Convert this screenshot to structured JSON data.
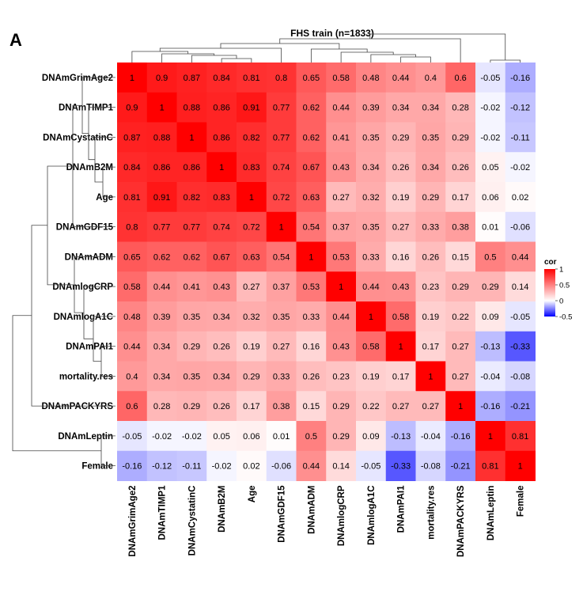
{
  "panel_label": "A",
  "chart_data": {
    "type": "heatmap",
    "title": "FHS train (n=1833)",
    "variables": [
      "DNAmGrimAge2",
      "DNAmTIMP1",
      "DNAmCystatinC",
      "DNAmB2M",
      "Age",
      "DNAmGDF15",
      "DNAmADM",
      "DNAmlogCRP",
      "DNAmlogA1C",
      "DNAmPAI1",
      "mortality.res",
      "DNAmPACKYRS",
      "DNAmLeptin",
      "Female"
    ],
    "values": [
      [
        1,
        0.9,
        0.87,
        0.84,
        0.81,
        0.8,
        0.65,
        0.58,
        0.48,
        0.44,
        0.4,
        0.6,
        -0.05,
        -0.16
      ],
      [
        0.9,
        1,
        0.88,
        0.86,
        0.91,
        0.77,
        0.62,
        0.44,
        0.39,
        0.34,
        0.34,
        0.28,
        -0.02,
        -0.12
      ],
      [
        0.87,
        0.88,
        1,
        0.86,
        0.82,
        0.77,
        0.62,
        0.41,
        0.35,
        0.29,
        0.35,
        0.29,
        -0.02,
        -0.11
      ],
      [
        0.84,
        0.86,
        0.86,
        1,
        0.83,
        0.74,
        0.67,
        0.43,
        0.34,
        0.26,
        0.34,
        0.26,
        0.05,
        -0.02
      ],
      [
        0.81,
        0.91,
        0.82,
        0.83,
        1,
        0.72,
        0.63,
        0.27,
        0.32,
        0.19,
        0.29,
        0.17,
        0.06,
        0.02
      ],
      [
        0.8,
        0.77,
        0.77,
        0.74,
        0.72,
        1,
        0.54,
        0.37,
        0.35,
        0.27,
        0.33,
        0.38,
        0.01,
        -0.06
      ],
      [
        0.65,
        0.62,
        0.62,
        0.67,
        0.63,
        0.54,
        1,
        0.53,
        0.33,
        0.16,
        0.26,
        0.15,
        0.5,
        0.44
      ],
      [
        0.58,
        0.44,
        0.41,
        0.43,
        0.27,
        0.37,
        0.53,
        1,
        0.44,
        0.43,
        0.23,
        0.29,
        0.29,
        0.14
      ],
      [
        0.48,
        0.39,
        0.35,
        0.34,
        0.32,
        0.35,
        0.33,
        0.44,
        1,
        0.58,
        0.19,
        0.22,
        0.09,
        -0.05
      ],
      [
        0.44,
        0.34,
        0.29,
        0.26,
        0.19,
        0.27,
        0.16,
        0.43,
        0.58,
        1,
        0.17,
        0.27,
        -0.13,
        -0.33
      ],
      [
        0.4,
        0.34,
        0.35,
        0.34,
        0.29,
        0.33,
        0.26,
        0.23,
        0.19,
        0.17,
        1,
        0.27,
        -0.04,
        -0.08
      ],
      [
        0.6,
        0.28,
        0.29,
        0.26,
        0.17,
        0.38,
        0.15,
        0.29,
        0.22,
        0.27,
        0.27,
        1,
        -0.16,
        -0.21
      ],
      [
        -0.05,
        -0.02,
        -0.02,
        0.05,
        0.06,
        0.01,
        0.5,
        0.29,
        0.09,
        -0.13,
        -0.04,
        -0.16,
        1,
        0.81
      ],
      [
        -0.16,
        -0.12,
        -0.11,
        -0.02,
        0.02,
        -0.06,
        0.44,
        0.14,
        -0.05,
        -0.33,
        -0.08,
        -0.21,
        0.81,
        1
      ]
    ],
    "legend": {
      "title": "cor",
      "ticks": [
        1,
        0.5,
        0,
        -0.5
      ],
      "range": [
        -0.5,
        1
      ],
      "colors": {
        "low": "#0000ff",
        "mid": "#ffffff",
        "high": "#ff0000"
      },
      "placement": "right"
    },
    "dendrograms": [
      "top",
      "left"
    ]
  }
}
